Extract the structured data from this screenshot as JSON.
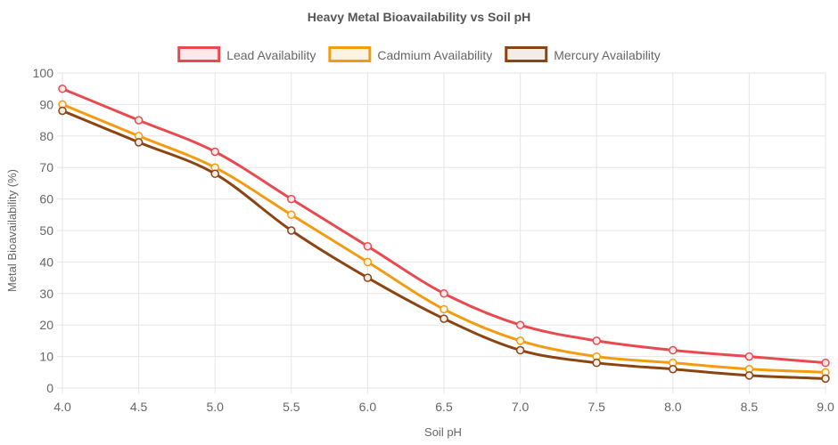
{
  "chart_data": {
    "type": "line",
    "title": "Heavy Metal Bioavailability vs Soil pH",
    "xlabel": "Soil pH",
    "ylabel": "Metal Bioavailability (%)",
    "x": [
      "4.0",
      "4.5",
      "5.0",
      "5.5",
      "6.0",
      "6.5",
      "7.0",
      "7.5",
      "8.0",
      "8.5",
      "9.0"
    ],
    "ylim": [
      0,
      100
    ],
    "yticks": [
      "0",
      "10",
      "20",
      "30",
      "40",
      "50",
      "60",
      "70",
      "80",
      "90",
      "100"
    ],
    "grid": true,
    "legend_position": "top",
    "series": [
      {
        "name": "Lead Availability",
        "color": "#e84a4f",
        "fill": "#fde8e9",
        "values": [
          95,
          85,
          75,
          60,
          45,
          30,
          20,
          15,
          12,
          10,
          8
        ]
      },
      {
        "name": "Cadmium Availability",
        "color": "#f39c12",
        "fill": "#fdf3e3",
        "values": [
          90,
          80,
          70,
          55,
          40,
          25,
          15,
          10,
          8,
          6,
          5
        ]
      },
      {
        "name": "Mercury Availability",
        "color": "#8b4513",
        "fill": "#f3ece7",
        "values": [
          88,
          78,
          68,
          50,
          35,
          22,
          12,
          8,
          6,
          4,
          3
        ]
      }
    ]
  }
}
